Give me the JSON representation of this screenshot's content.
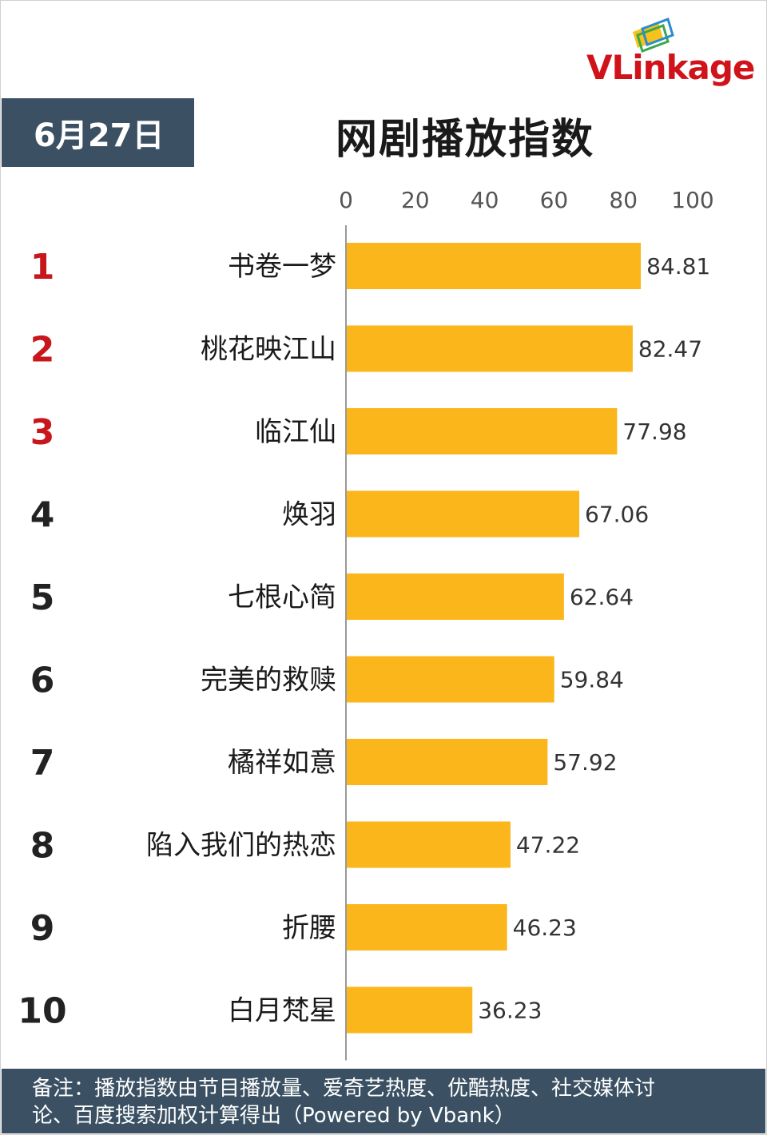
{
  "brand": {
    "logo_text_a": "VLink",
    "logo_text_b": "age"
  },
  "header": {
    "date": "6月27日",
    "title": "网剧播放指数"
  },
  "chart_data": {
    "type": "bar",
    "orientation": "horizontal",
    "title": "网剧播放指数",
    "xlim": [
      0,
      100
    ],
    "x_ticks": [
      "0",
      "20",
      "40",
      "60",
      "80",
      "100"
    ],
    "ranks": [
      "1",
      "2",
      "3",
      "4",
      "5",
      "6",
      "7",
      "8",
      "9",
      "10"
    ],
    "categories": [
      "书卷一梦",
      "桃花映江山",
      "临江仙",
      "焕羽",
      "七根心简",
      "完美的救赎",
      "橘祥如意",
      "陷入我们的热恋",
      "折腰",
      "白月梵星"
    ],
    "values": [
      84.81,
      82.47,
      77.98,
      67.06,
      62.64,
      59.84,
      57.92,
      47.22,
      46.23,
      36.23
    ],
    "value_labels": [
      "84.81",
      "82.47",
      "77.98",
      "67.06",
      "62.64",
      "59.84",
      "57.92",
      "47.22",
      "46.23",
      "36.23"
    ],
    "bar_color": "#fbb61b",
    "top_rank_color": "#c8161d",
    "rank_color": "#222222",
    "grid": false,
    "legend": "none"
  },
  "footer": {
    "line1": "备注：播放指数由节目播放量、爱奇艺热度、优酷热度、社交媒体讨",
    "line2": "论、百度搜索加权计算得出（Powered by Vbank）"
  }
}
